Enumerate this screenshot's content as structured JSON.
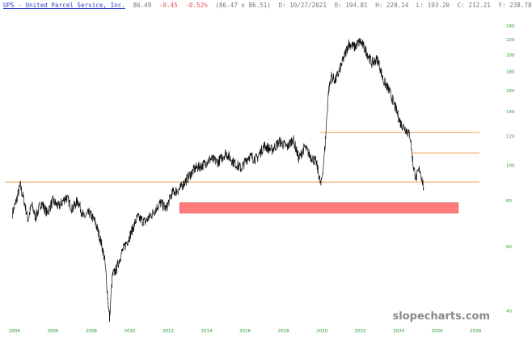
{
  "header": {
    "symbol": "UPS - United Parcel Service, Inc.",
    "price": "86.49",
    "change": "-0.45",
    "change_pct": "-0.52%",
    "range": "(86.47 x 86.51)",
    "date": "D: 10/27/2021",
    "open": "O: 194.81",
    "high": "H: 220.24",
    "low": "L: 193.20",
    "close": "C: 212.21",
    "ycursor": "Y: 238.78"
  },
  "watermark": "slopecharts.com",
  "colors": {
    "price_line": "#111111",
    "level_line": "#f0a050",
    "zone_fill": "#ff7b7b",
    "tick_text": "#2a9a2a"
  },
  "chart_data": {
    "type": "line",
    "scale": "log",
    "x_ticks": [
      "2004",
      "2006",
      "2008",
      "2010",
      "2012",
      "2014",
      "2016",
      "2018",
      "2020",
      "2022",
      "2024",
      "2026",
      "2028"
    ],
    "y_ticks": [
      40,
      60,
      80,
      100,
      120,
      140,
      160,
      180,
      200,
      220,
      240
    ],
    "xlim": [
      2003.5,
      2029.0
    ],
    "ylim": [
      37,
      250
    ],
    "grid": false,
    "horizontal_levels": [
      {
        "y": 90,
        "x_start": 2003.5,
        "x_end": 2028.2
      },
      {
        "y": 123,
        "x_start": 2019.9,
        "x_end": 2028.2
      },
      {
        "y": 108,
        "x_start": 2024.7,
        "x_end": 2028.2
      }
    ],
    "zone": {
      "y_low": 74,
      "y_high": 79,
      "x_start": 2012.6,
      "x_end": 2027.1
    },
    "series": [
      {
        "x": [
          2003.9,
          2004.1,
          2004.3,
          2004.5,
          2004.7,
          2004.9,
          2005.1,
          2005.4,
          2005.7,
          2006.0,
          2006.3,
          2006.7,
          2007.0,
          2007.3,
          2007.6,
          2007.9,
          2008.2,
          2008.5,
          2008.7,
          2008.85,
          2008.95,
          2009.1,
          2009.3,
          2009.6,
          2010.0,
          2010.4,
          2010.8,
          2011.2,
          2011.6,
          2011.9,
          2012.2,
          2012.6,
          2013.0,
          2013.4,
          2013.8,
          2014.2,
          2014.6,
          2015.0,
          2015.4,
          2015.8,
          2016.2,
          2016.6,
          2017.0,
          2017.4,
          2017.8,
          2018.2,
          2018.5,
          2018.8,
          2019.1,
          2019.4,
          2019.7,
          2019.95,
          2020.1,
          2020.2,
          2020.35,
          2020.5,
          2020.7,
          2020.9,
          2021.2,
          2021.4,
          2021.7,
          2022.0,
          2022.3,
          2022.6,
          2022.9,
          2023.2,
          2023.5,
          2023.8,
          2024.1,
          2024.4,
          2024.6,
          2024.75,
          2024.9,
          2025.1,
          2025.3
        ],
        "values": [
          74,
          80,
          88,
          80,
          71,
          78,
          72,
          79,
          74,
          80,
          77,
          82,
          76,
          80,
          72,
          74,
          70,
          62,
          55,
          44,
          38,
          50,
          52,
          58,
          64,
          72,
          70,
          74,
          79,
          76,
          84,
          86,
          92,
          98,
          100,
          104,
          102,
          108,
          102,
          98,
          106,
          104,
          113,
          110,
          116,
          112,
          118,
          104,
          112,
          106,
          102,
          88,
          102,
          120,
          160,
          175,
          170,
          180,
          200,
          215,
          210,
          218,
          205,
          190,
          195,
          170,
          160,
          145,
          130,
          125,
          120,
          100,
          92,
          98,
          86.5
        ]
      }
    ]
  }
}
